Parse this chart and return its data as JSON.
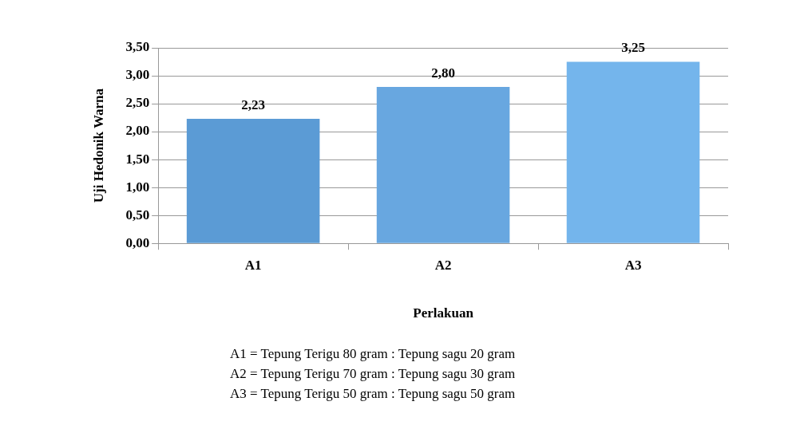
{
  "chart_data": {
    "type": "bar",
    "xlabel": "Perlakuan",
    "ylabel": "Uji Hedonik Warna",
    "categories": [
      "A1",
      "A2",
      "A3"
    ],
    "values": [
      2.23,
      2.8,
      3.25
    ],
    "colors": [
      "#5b9bd5",
      "#68a7e0",
      "#74b5ec"
    ],
    "value_labels": [
      "2,23",
      "2,80",
      "3,25"
    ],
    "ylim": [
      0,
      3.5
    ],
    "yticks": [
      {
        "value": 0,
        "label": "0,00"
      },
      {
        "value": 0.5,
        "label": "0,50"
      },
      {
        "value": 1,
        "label": "1,00"
      },
      {
        "value": 1.5,
        "label": "1,50"
      },
      {
        "value": 2,
        "label": "2,00"
      },
      {
        "value": 2.5,
        "label": "2,50"
      },
      {
        "value": 3,
        "label": "3,00"
      },
      {
        "value": 3.5,
        "label": "3,50"
      }
    ],
    "grid": true,
    "legend": false,
    "annotations": [
      "A1 = Tepung Terigu 80 gram : Tepung sagu 20 gram",
      "A2 = Tepung Terigu 70 gram : Tepung sagu 30 gram",
      "A3 = Tepung Terigu 50 gram : Tepung sagu 50 gram"
    ]
  }
}
